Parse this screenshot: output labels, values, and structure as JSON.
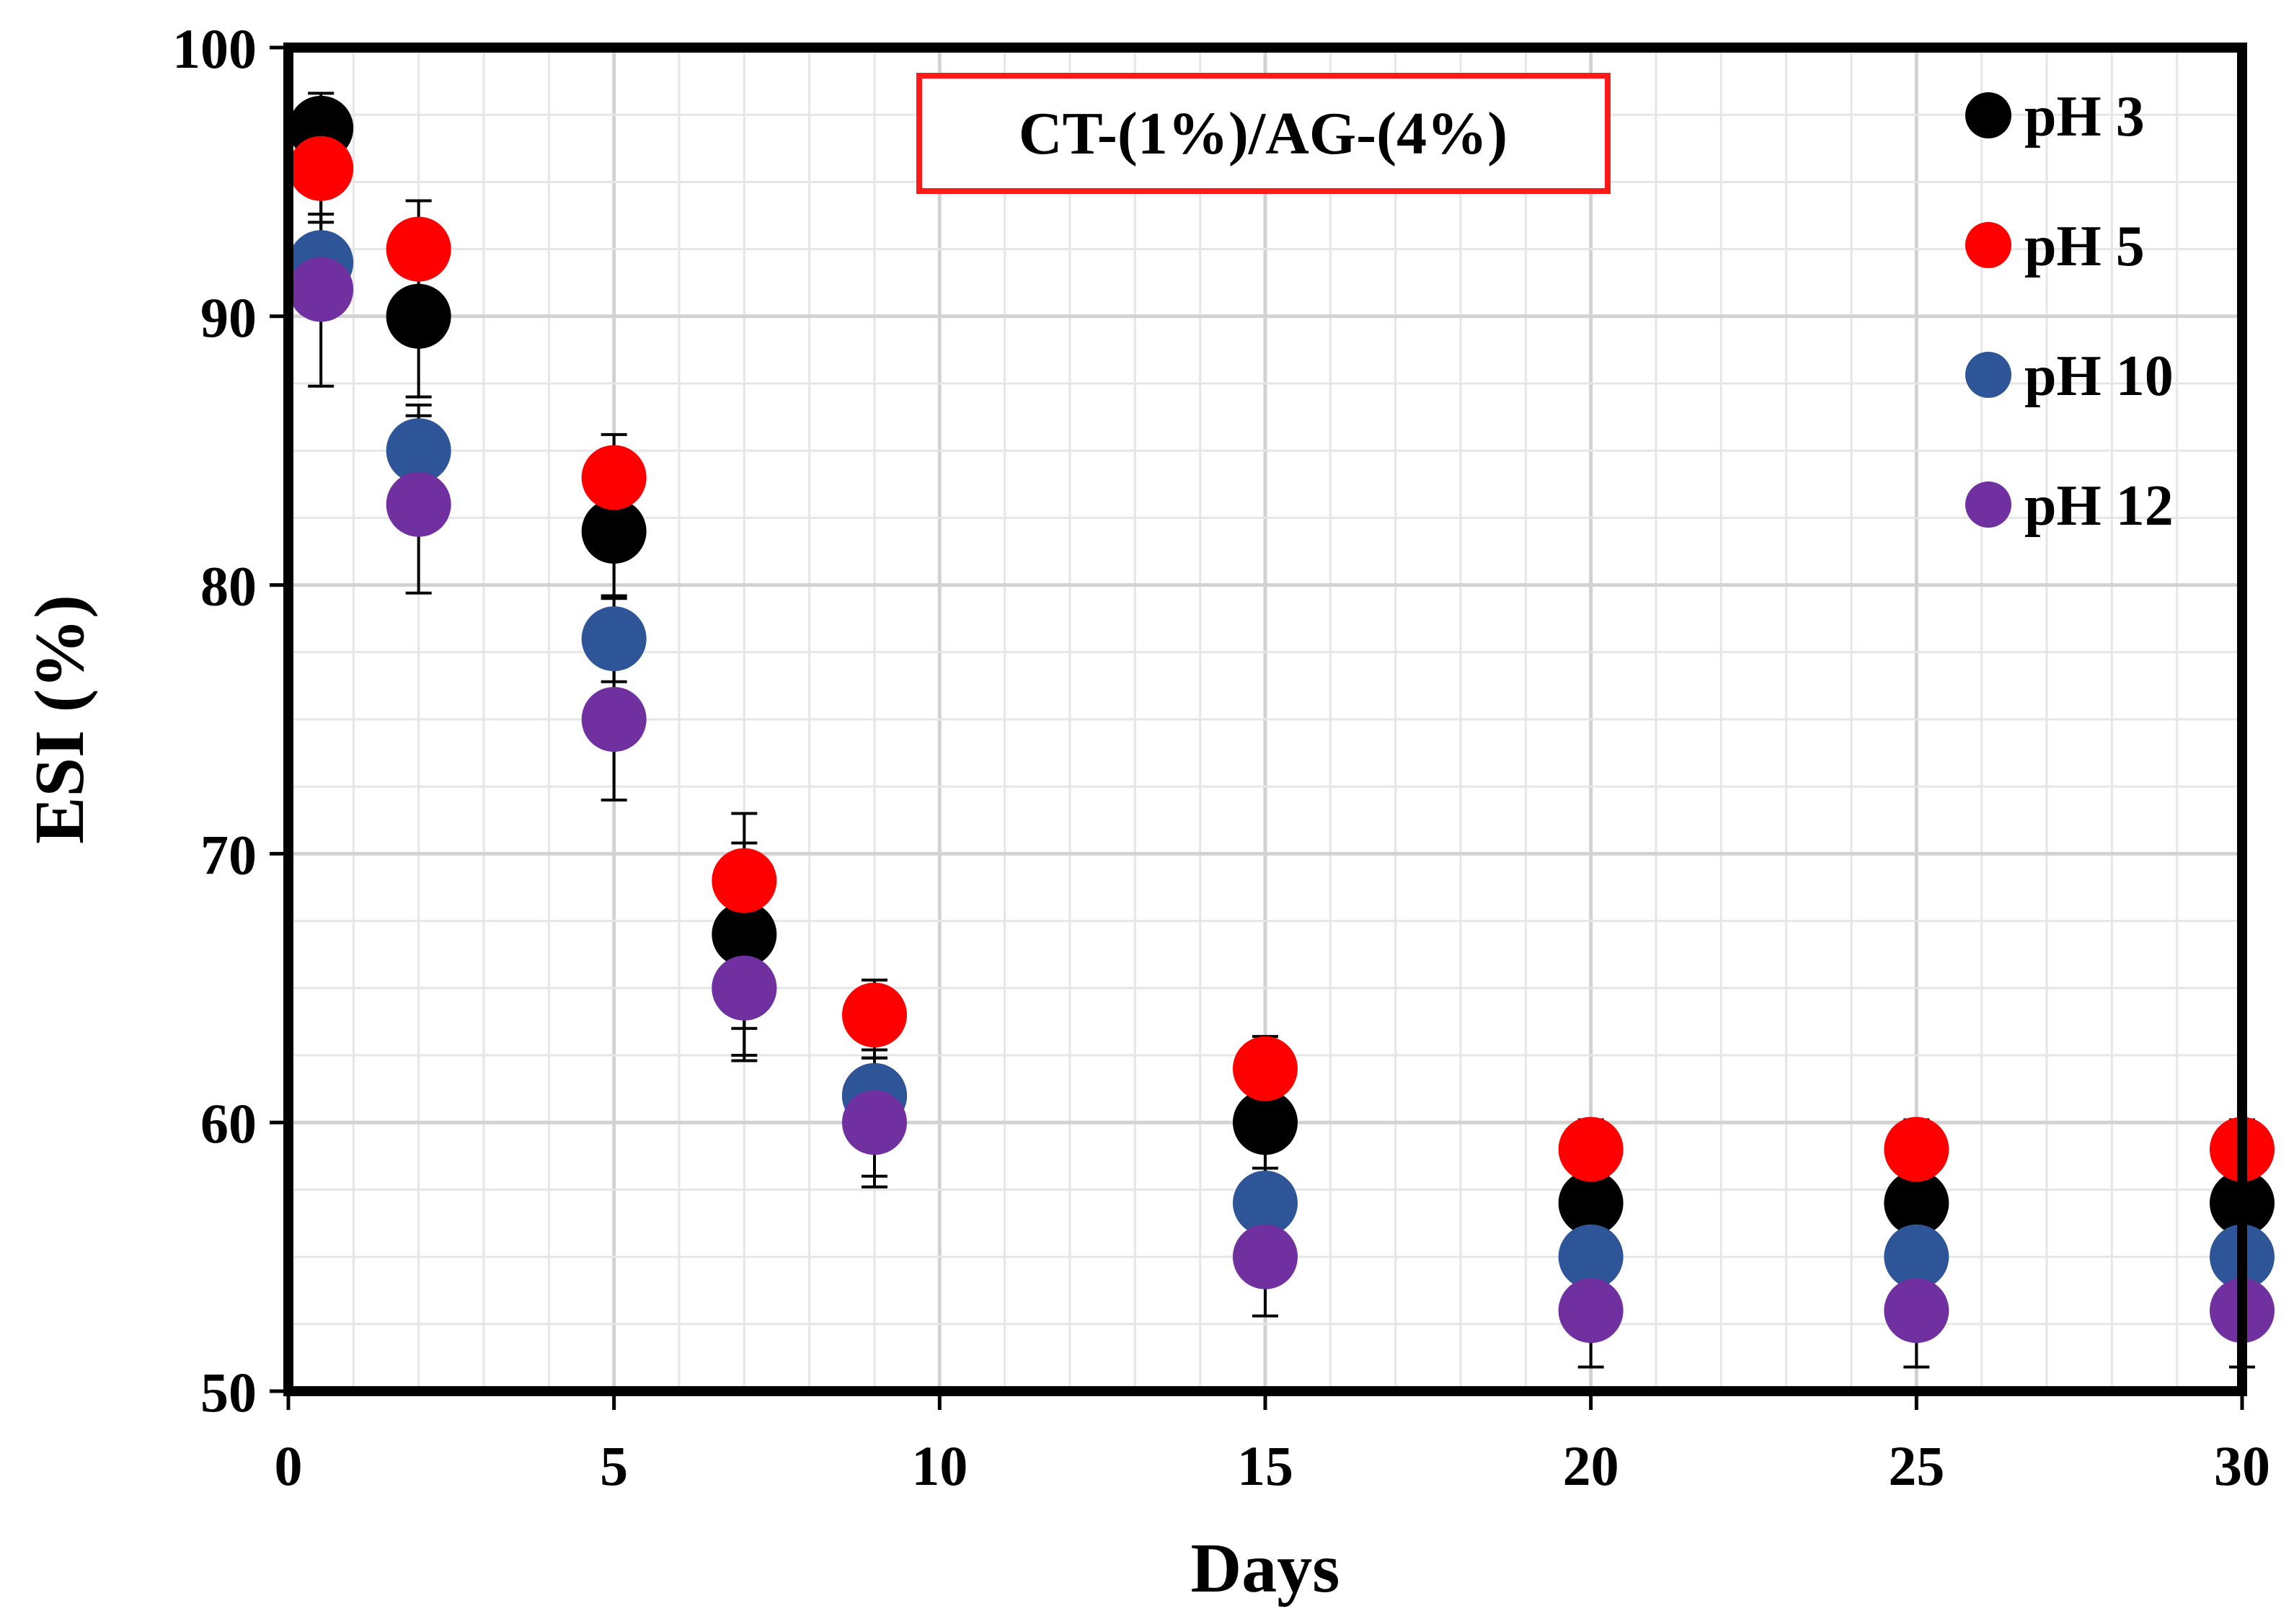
{
  "chart_data": {
    "type": "scatter",
    "title": "",
    "xlabel": "Days",
    "ylabel": "ESI (%)",
    "xlim": [
      0,
      30
    ],
    "ylim": [
      50,
      100
    ],
    "x_ticks": [
      0,
      5,
      10,
      15,
      20,
      25,
      30
    ],
    "y_ticks": [
      50,
      60,
      70,
      80,
      90,
      100
    ],
    "grid": true,
    "legend_position": "top-right",
    "annotation": "CT-(1%)/AG-(4%)",
    "annotation_border_color": "#ff1a1a",
    "x": [
      0.5,
      2,
      5,
      7,
      9,
      15,
      20,
      25,
      30
    ],
    "series": [
      {
        "name": "pH 3",
        "color": "#000000",
        "values": [
          97,
          90,
          82,
          67,
          61,
          60,
          57,
          57,
          57
        ],
        "errors": [
          1.3,
          3.0,
          2.5,
          4.5,
          3.0,
          2.2,
          1.5,
          1.5,
          1.5
        ]
      },
      {
        "name": "pH 5",
        "color": "#ff0000",
        "values": [
          95.5,
          92.5,
          84,
          69,
          64,
          62,
          59,
          59,
          59
        ],
        "errors": [
          2.0,
          1.8,
          1.6,
          1.4,
          1.3,
          1.2,
          1.1,
          1.1,
          1.1
        ]
      },
      {
        "name": "pH 10",
        "color": "#2e5597",
        "values": [
          92,
          85,
          78,
          65,
          61,
          57,
          55,
          55,
          55
        ],
        "errors": [
          1.8,
          1.7,
          1.6,
          1.5,
          1.4,
          1.3,
          1.2,
          1.2,
          1.2
        ]
      },
      {
        "name": "pH 12",
        "color": "#7030a0",
        "values": [
          91,
          83,
          75,
          65,
          60,
          55,
          53,
          53,
          53
        ],
        "errors": [
          3.6,
          3.3,
          3.0,
          2.7,
          2.4,
          2.2,
          2.1,
          2.1,
          2.1
        ]
      }
    ]
  }
}
